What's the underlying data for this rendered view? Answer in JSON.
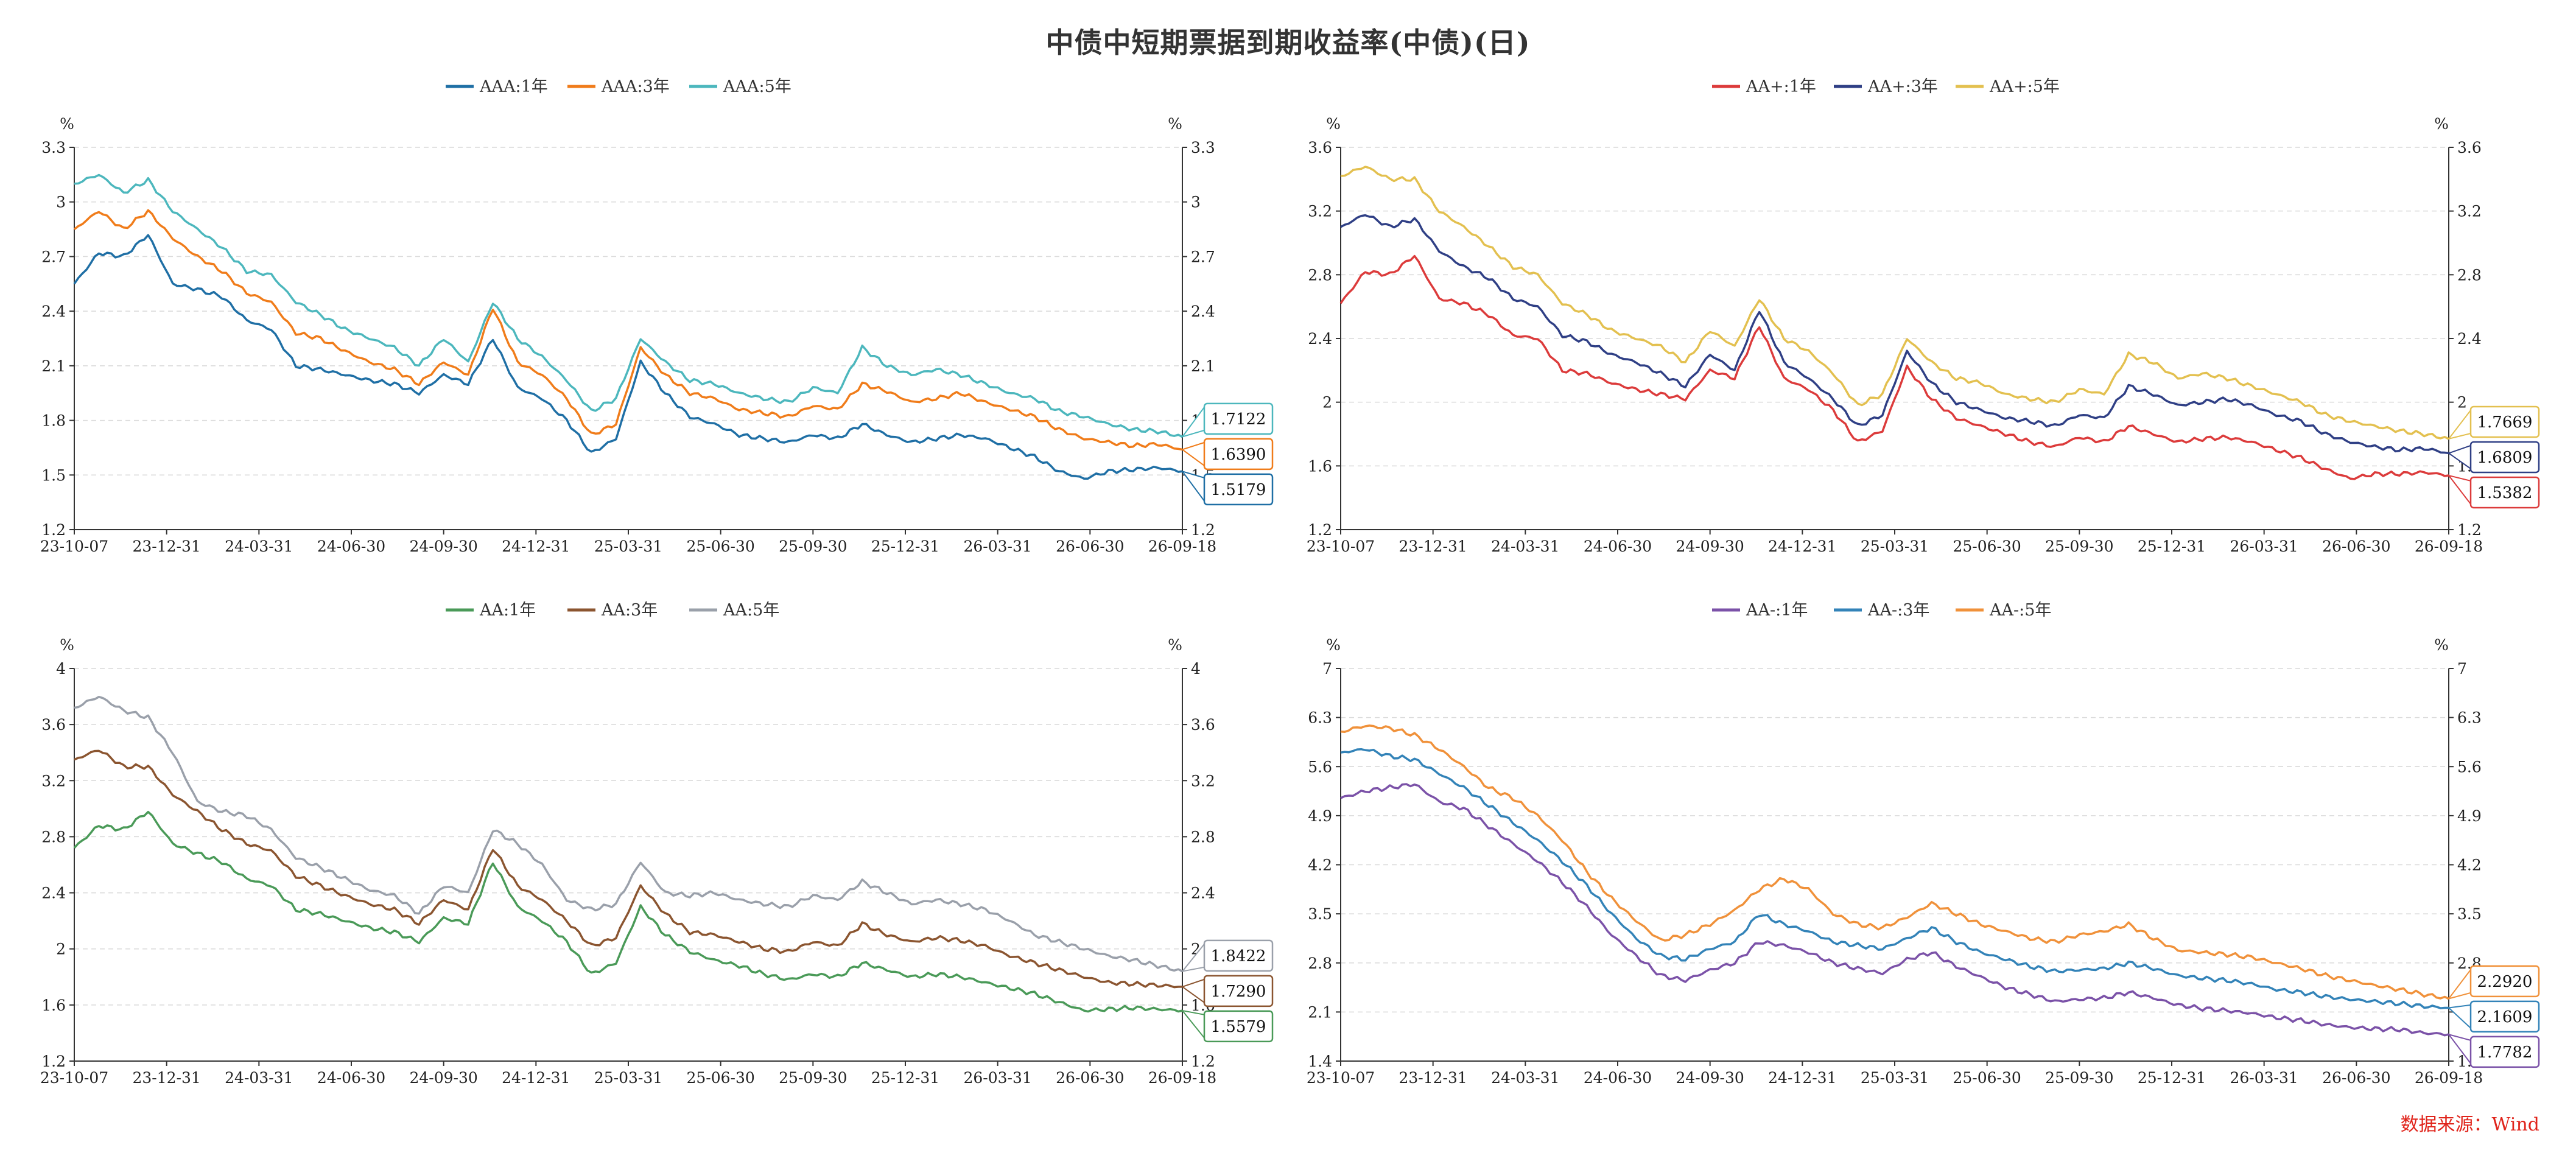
{
  "title": "中债中短期票据到期收益率(中债)(日)",
  "source": "数据来源：Wind",
  "x_ticks": [
    "23-10-07",
    "23-12-31",
    "24-03-31",
    "24-06-30",
    "24-09-30",
    "24-12-31",
    "25-03-31",
    "25-06-30",
    "25-09-30",
    "25-12-31",
    "26-03-31",
    "26-06-30",
    "26-09-18"
  ],
  "chart_data": [
    {
      "type": "line",
      "unit_left": "%",
      "unit_right": "%",
      "ylim": [
        1.2,
        3.3
      ],
      "yticks": [
        "1.2",
        "1.5",
        "1.8",
        "2.1",
        "2.4",
        "2.7",
        "3",
        "3.3"
      ],
      "grid": true,
      "legend_position": "top-center",
      "series": [
        {
          "name": "AAA:1年",
          "color": "#1f6fa5",
          "last": "1.5179",
          "values": [
            2.55,
            2.72,
            2.7,
            2.82,
            2.55,
            2.52,
            2.48,
            2.35,
            2.3,
            2.1,
            2.08,
            2.05,
            2.02,
            2.0,
            1.95,
            2.05,
            2.0,
            2.25,
            1.98,
            1.92,
            1.8,
            1.62,
            1.7,
            2.12,
            1.95,
            1.82,
            1.78,
            1.72,
            1.7,
            1.68,
            1.72,
            1.7,
            1.78,
            1.72,
            1.68,
            1.7,
            1.72,
            1.7,
            1.65,
            1.6,
            1.52,
            1.48,
            1.52,
            1.53,
            1.54,
            1.52
          ]
        },
        {
          "name": "AAA:3年",
          "color": "#f07c1a",
          "last": "1.6390",
          "values": [
            2.85,
            2.95,
            2.85,
            2.95,
            2.8,
            2.7,
            2.62,
            2.5,
            2.45,
            2.28,
            2.25,
            2.18,
            2.12,
            2.08,
            2.0,
            2.12,
            2.05,
            2.42,
            2.12,
            2.05,
            1.92,
            1.72,
            1.78,
            2.2,
            2.05,
            1.95,
            1.92,
            1.86,
            1.84,
            1.82,
            1.88,
            1.86,
            2.0,
            1.96,
            1.9,
            1.92,
            1.95,
            1.9,
            1.86,
            1.82,
            1.75,
            1.7,
            1.68,
            1.66,
            1.67,
            1.64
          ]
        },
        {
          "name": "AAA:5年",
          "color": "#4cb7bd",
          "last": "1.7122",
          "values": [
            3.1,
            3.15,
            3.05,
            3.12,
            2.95,
            2.85,
            2.75,
            2.62,
            2.6,
            2.45,
            2.38,
            2.3,
            2.25,
            2.2,
            2.1,
            2.25,
            2.12,
            2.45,
            2.25,
            2.15,
            2.02,
            1.85,
            1.92,
            2.25,
            2.12,
            2.02,
            2.0,
            1.95,
            1.92,
            1.9,
            1.98,
            1.95,
            2.2,
            2.1,
            2.05,
            2.08,
            2.05,
            2.0,
            1.95,
            1.92,
            1.85,
            1.82,
            1.78,
            1.75,
            1.74,
            1.71
          ]
        }
      ]
    },
    {
      "type": "line",
      "unit_left": "%",
      "unit_right": "%",
      "ylim": [
        1.2,
        3.6
      ],
      "yticks": [
        "1.2",
        "1.6",
        "2",
        "2.4",
        "2.8",
        "3.2",
        "3.6"
      ],
      "grid": true,
      "legend_position": "top-center",
      "series": [
        {
          "name": "AA+:1年",
          "color": "#dc3b3b",
          "last": "1.5382",
          "values": [
            2.62,
            2.82,
            2.8,
            2.92,
            2.65,
            2.62,
            2.55,
            2.42,
            2.4,
            2.2,
            2.18,
            2.12,
            2.08,
            2.05,
            2.02,
            2.2,
            2.15,
            2.48,
            2.15,
            2.08,
            1.95,
            1.75,
            1.82,
            2.22,
            2.02,
            1.9,
            1.85,
            1.8,
            1.75,
            1.72,
            1.78,
            1.75,
            1.85,
            1.8,
            1.75,
            1.77,
            1.78,
            1.75,
            1.7,
            1.65,
            1.58,
            1.52,
            1.55,
            1.55,
            1.56,
            1.54
          ]
        },
        {
          "name": "AA+:3年",
          "color": "#2f3f85",
          "last": "1.6809",
          "values": [
            3.1,
            3.18,
            3.1,
            3.15,
            2.95,
            2.85,
            2.78,
            2.65,
            2.6,
            2.42,
            2.38,
            2.3,
            2.25,
            2.18,
            2.1,
            2.3,
            2.2,
            2.58,
            2.25,
            2.15,
            2.02,
            1.85,
            1.92,
            2.32,
            2.12,
            2.0,
            1.95,
            1.9,
            1.88,
            1.85,
            1.92,
            1.9,
            2.1,
            2.05,
            1.98,
            2.0,
            2.02,
            1.98,
            1.92,
            1.88,
            1.8,
            1.75,
            1.72,
            1.7,
            1.71,
            1.68
          ]
        },
        {
          "name": "AA+:5年",
          "color": "#e3c04f",
          "last": "1.7669",
          "values": [
            3.42,
            3.48,
            3.4,
            3.4,
            3.2,
            3.1,
            2.98,
            2.85,
            2.8,
            2.62,
            2.55,
            2.45,
            2.4,
            2.35,
            2.25,
            2.45,
            2.35,
            2.65,
            2.4,
            2.32,
            2.18,
            1.98,
            2.05,
            2.4,
            2.25,
            2.15,
            2.12,
            2.05,
            2.02,
            2.0,
            2.08,
            2.05,
            2.3,
            2.25,
            2.15,
            2.18,
            2.15,
            2.1,
            2.05,
            2.0,
            1.92,
            1.88,
            1.85,
            1.82,
            1.8,
            1.77
          ]
        }
      ]
    },
    {
      "type": "line",
      "unit_left": "%",
      "unit_right": "%",
      "ylim": [
        1.2,
        4.0
      ],
      "yticks": [
        "1.2",
        "1.6",
        "2",
        "2.4",
        "2.8",
        "3.2",
        "3.6",
        "4"
      ],
      "grid": true,
      "legend_position": "top-center",
      "series": [
        {
          "name": "AA:1年",
          "color": "#4a9a58",
          "last": "1.5579",
          "values": [
            2.72,
            2.88,
            2.85,
            2.98,
            2.75,
            2.68,
            2.62,
            2.5,
            2.45,
            2.28,
            2.25,
            2.2,
            2.15,
            2.12,
            2.05,
            2.22,
            2.18,
            2.62,
            2.3,
            2.2,
            2.05,
            1.82,
            1.9,
            2.3,
            2.1,
            1.98,
            1.92,
            1.88,
            1.82,
            1.78,
            1.82,
            1.8,
            1.9,
            1.85,
            1.8,
            1.82,
            1.8,
            1.76,
            1.72,
            1.68,
            1.62,
            1.56,
            1.57,
            1.58,
            1.57,
            1.56
          ]
        },
        {
          "name": "AA:3年",
          "color": "#8b5530",
          "last": "1.7290",
          "values": [
            3.35,
            3.42,
            3.3,
            3.3,
            3.1,
            2.98,
            2.85,
            2.75,
            2.7,
            2.52,
            2.45,
            2.38,
            2.32,
            2.28,
            2.18,
            2.35,
            2.28,
            2.72,
            2.45,
            2.35,
            2.2,
            2.02,
            2.08,
            2.45,
            2.25,
            2.12,
            2.1,
            2.05,
            2.0,
            1.98,
            2.05,
            2.02,
            2.18,
            2.1,
            2.05,
            2.08,
            2.06,
            2.02,
            1.95,
            1.9,
            1.85,
            1.8,
            1.76,
            1.75,
            1.74,
            1.73
          ]
        },
        {
          "name": "AA:5年",
          "color": "#9aa0aa",
          "last": "1.8422",
          "values": [
            3.72,
            3.8,
            3.7,
            3.65,
            3.4,
            3.05,
            2.98,
            2.95,
            2.85,
            2.65,
            2.58,
            2.5,
            2.42,
            2.38,
            2.25,
            2.45,
            2.4,
            2.85,
            2.75,
            2.6,
            2.35,
            2.28,
            2.32,
            2.62,
            2.4,
            2.38,
            2.4,
            2.35,
            2.32,
            2.3,
            2.38,
            2.35,
            2.48,
            2.4,
            2.32,
            2.35,
            2.32,
            2.28,
            2.2,
            2.1,
            2.05,
            2.0,
            1.95,
            1.92,
            1.88,
            1.84
          ]
        }
      ]
    },
    {
      "type": "line",
      "unit_left": "%",
      "unit_right": "%",
      "ylim": [
        1.4,
        7.0
      ],
      "yticks": [
        "1.4",
        "2.1",
        "2.8",
        "3.5",
        "4.2",
        "4.9",
        "5.6",
        "6.3",
        "7"
      ],
      "grid": true,
      "legend_position": "top-center",
      "series": [
        {
          "name": "AA-:1年",
          "color": "#7b52a8",
          "last": "1.7782",
          "values": [
            5.15,
            5.25,
            5.3,
            5.35,
            5.1,
            5.0,
            4.75,
            4.5,
            4.25,
            3.95,
            3.6,
            3.2,
            2.9,
            2.62,
            2.55,
            2.7,
            2.8,
            3.1,
            3.05,
            2.95,
            2.8,
            2.72,
            2.65,
            2.85,
            2.95,
            2.75,
            2.6,
            2.45,
            2.35,
            2.25,
            2.28,
            2.3,
            2.38,
            2.3,
            2.2,
            2.15,
            2.12,
            2.08,
            2.02,
            1.98,
            1.92,
            1.88,
            1.86,
            1.85,
            1.8,
            1.78
          ]
        },
        {
          "name": "AA-:3年",
          "color": "#3383b8",
          "last": "2.1609",
          "values": [
            5.8,
            5.85,
            5.75,
            5.7,
            5.5,
            5.3,
            5.05,
            4.8,
            4.55,
            4.25,
            3.9,
            3.5,
            3.15,
            2.9,
            2.85,
            3.0,
            3.1,
            3.5,
            3.35,
            3.25,
            3.1,
            3.05,
            3.0,
            3.15,
            3.3,
            3.1,
            2.95,
            2.85,
            2.75,
            2.68,
            2.7,
            2.72,
            2.8,
            2.72,
            2.62,
            2.58,
            2.55,
            2.5,
            2.42,
            2.38,
            2.32,
            2.28,
            2.25,
            2.22,
            2.18,
            2.16
          ]
        },
        {
          "name": "AA-:5年",
          "color": "#f0913a",
          "last": "2.2920",
          "values": [
            6.1,
            6.18,
            6.15,
            6.05,
            5.85,
            5.6,
            5.3,
            5.15,
            4.9,
            4.55,
            4.1,
            3.72,
            3.4,
            3.12,
            3.2,
            3.35,
            3.55,
            3.85,
            4.0,
            3.85,
            3.5,
            3.35,
            3.3,
            3.45,
            3.65,
            3.5,
            3.35,
            3.25,
            3.15,
            3.1,
            3.2,
            3.25,
            3.35,
            3.15,
            2.98,
            2.95,
            2.92,
            2.88,
            2.8,
            2.72,
            2.62,
            2.55,
            2.48,
            2.42,
            2.35,
            2.29
          ]
        }
      ]
    }
  ]
}
